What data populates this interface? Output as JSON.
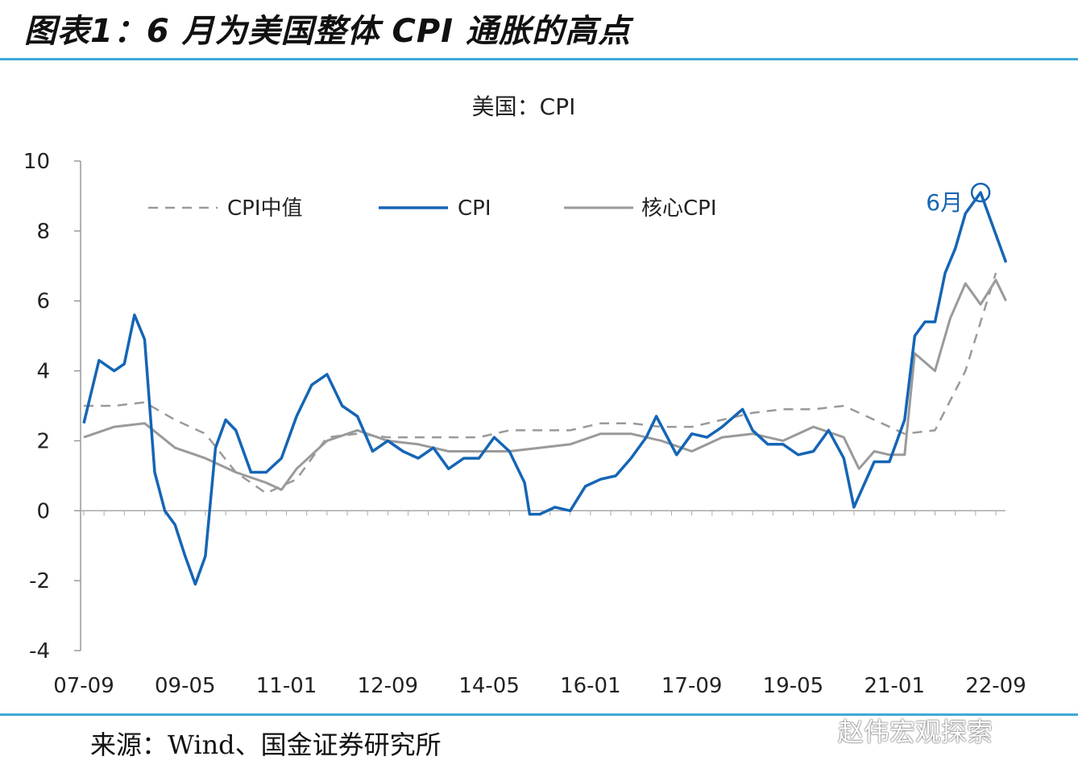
{
  "figure": {
    "title": "图表1：6 月为美国整体 CPI 通胀的高点",
    "source": "来源：Wind、国金证券研究所",
    "watermark": "赵伟宏观探索"
  },
  "colors": {
    "cpi": "#1565b5",
    "core": "#9a9a9a",
    "median": "#9a9a9a",
    "rule": "#3fa9d6"
  },
  "chart_data": {
    "type": "line",
    "title": "美国：CPI",
    "xlabel": "",
    "ylabel": "",
    "ylim": [
      -4,
      10
    ],
    "yticks": [
      -4,
      -2,
      0,
      2,
      4,
      6,
      8,
      10
    ],
    "xlim": [
      "2007-09",
      "2022-11"
    ],
    "xticks": [
      "07-09",
      "09-05",
      "11-01",
      "12-09",
      "14-05",
      "16-01",
      "17-09",
      "19-05",
      "21-01",
      "22-09"
    ],
    "grid": false,
    "legend": "top",
    "annotation": {
      "text": "6月",
      "x": "2022-06",
      "y": 9.1
    },
    "series": [
      {
        "name": "CPI中值",
        "style": "dashed",
        "x": [
          "2007-09",
          "2008-03",
          "2008-09",
          "2009-03",
          "2009-09",
          "2010-03",
          "2010-09",
          "2011-03",
          "2011-09",
          "2012-03",
          "2012-09",
          "2013-03",
          "2013-09",
          "2014-03",
          "2014-09",
          "2015-03",
          "2015-09",
          "2016-03",
          "2016-09",
          "2017-03",
          "2017-09",
          "2018-03",
          "2018-09",
          "2019-03",
          "2019-09",
          "2020-03",
          "2020-09",
          "2021-03",
          "2021-09",
          "2022-03",
          "2022-09"
        ],
        "values": [
          3.0,
          3.0,
          3.1,
          2.6,
          2.2,
          1.1,
          0.5,
          0.9,
          2.1,
          2.2,
          2.1,
          2.1,
          2.1,
          2.1,
          2.3,
          2.3,
          2.3,
          2.5,
          2.5,
          2.4,
          2.4,
          2.6,
          2.8,
          2.9,
          2.9,
          3.0,
          2.6,
          2.2,
          2.3,
          4.0,
          6.8
        ]
      },
      {
        "name": "CPI",
        "style": "solid",
        "x": [
          "2007-09",
          "2007-12",
          "2008-03",
          "2008-05",
          "2008-07",
          "2008-09",
          "2008-11",
          "2009-01",
          "2009-03",
          "2009-05",
          "2009-07",
          "2009-09",
          "2009-11",
          "2010-01",
          "2010-03",
          "2010-06",
          "2010-09",
          "2010-12",
          "2011-03",
          "2011-06",
          "2011-09",
          "2011-12",
          "2012-03",
          "2012-06",
          "2012-09",
          "2012-12",
          "2013-03",
          "2013-06",
          "2013-09",
          "2013-12",
          "2014-03",
          "2014-06",
          "2014-09",
          "2014-12",
          "2015-01",
          "2015-03",
          "2015-06",
          "2015-09",
          "2015-12",
          "2016-03",
          "2016-06",
          "2016-09",
          "2016-12",
          "2017-02",
          "2017-06",
          "2017-09",
          "2017-12",
          "2018-03",
          "2018-07",
          "2018-09",
          "2018-12",
          "2019-03",
          "2019-06",
          "2019-09",
          "2019-12",
          "2020-03",
          "2020-05",
          "2020-09",
          "2020-12",
          "2021-03",
          "2021-05",
          "2021-07",
          "2021-09",
          "2021-11",
          "2022-01",
          "2022-03",
          "2022-06",
          "2022-08",
          "2022-11"
        ],
        "values": [
          2.5,
          4.3,
          4.0,
          4.2,
          5.6,
          4.9,
          1.1,
          0.0,
          -0.4,
          -1.3,
          -2.1,
          -1.3,
          1.8,
          2.6,
          2.3,
          1.1,
          1.1,
          1.5,
          2.7,
          3.6,
          3.9,
          3.0,
          2.7,
          1.7,
          2.0,
          1.7,
          1.5,
          1.8,
          1.2,
          1.5,
          1.5,
          2.1,
          1.7,
          0.8,
          -0.1,
          -0.1,
          0.1,
          0.0,
          0.7,
          0.9,
          1.0,
          1.5,
          2.1,
          2.7,
          1.6,
          2.2,
          2.1,
          2.4,
          2.9,
          2.3,
          1.9,
          1.9,
          1.6,
          1.7,
          2.3,
          1.5,
          0.1,
          1.4,
          1.4,
          2.6,
          5.0,
          5.4,
          5.4,
          6.8,
          7.5,
          8.5,
          9.1,
          8.3,
          7.1
        ]
      },
      {
        "name": "核心CPI",
        "style": "solid",
        "x": [
          "2007-09",
          "2008-03",
          "2008-09",
          "2009-03",
          "2009-09",
          "2010-03",
          "2010-09",
          "2010-12",
          "2011-03",
          "2011-09",
          "2012-03",
          "2012-09",
          "2013-03",
          "2013-09",
          "2014-03",
          "2014-09",
          "2015-03",
          "2015-09",
          "2016-03",
          "2016-09",
          "2017-03",
          "2017-09",
          "2018-03",
          "2018-09",
          "2019-03",
          "2019-09",
          "2020-03",
          "2020-06",
          "2020-09",
          "2020-12",
          "2021-03",
          "2021-05",
          "2021-09",
          "2021-12",
          "2022-03",
          "2022-06",
          "2022-09",
          "2022-11"
        ],
        "values": [
          2.1,
          2.4,
          2.5,
          1.8,
          1.5,
          1.1,
          0.8,
          0.6,
          1.2,
          2.0,
          2.3,
          2.0,
          1.9,
          1.7,
          1.7,
          1.7,
          1.8,
          1.9,
          2.2,
          2.2,
          2.0,
          1.7,
          2.1,
          2.2,
          2.0,
          2.4,
          2.1,
          1.2,
          1.7,
          1.6,
          1.6,
          4.5,
          4.0,
          5.5,
          6.5,
          5.9,
          6.6,
          6.0
        ]
      }
    ]
  }
}
